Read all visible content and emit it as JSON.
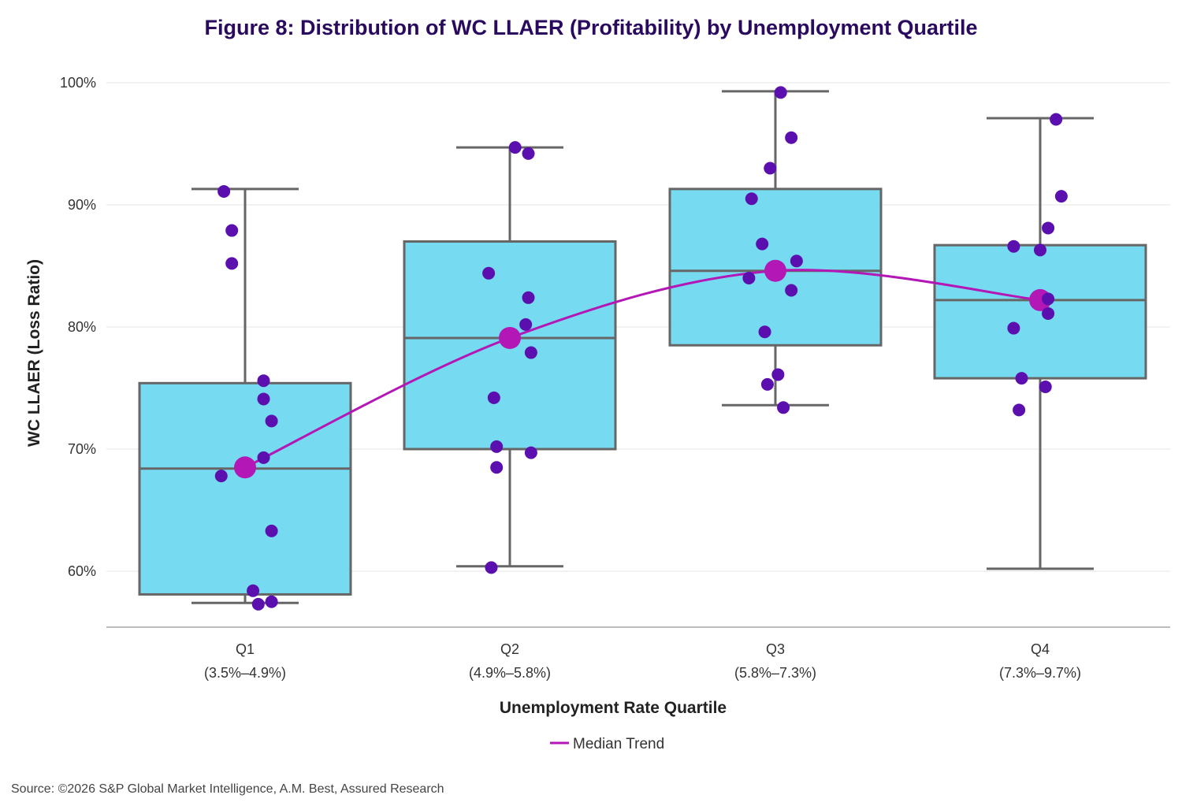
{
  "chart_data": {
    "type": "box",
    "title": "Figure 8: Distribution of WC LLAER (Profitability) by Unemployment Quartile",
    "xlabel": "Unemployment Rate Quartile",
    "ylabel": "WC LLAER (Loss Ratio)",
    "ylim": [
      55.5,
      100.5
    ],
    "yticks": [
      60,
      70,
      80,
      90,
      100
    ],
    "ytick_labels": [
      "60%",
      "70%",
      "80%",
      "90%",
      "100%"
    ],
    "grid": true,
    "legend_position": "bottom-center",
    "categories": [
      {
        "name": "Q1",
        "range": "(3.5%–4.9%)"
      },
      {
        "name": "Q2",
        "range": "(4.9%–5.8%)"
      },
      {
        "name": "Q3",
        "range": "(5.8%–7.3%)"
      },
      {
        "name": "Q4",
        "range": "(7.3%–9.7%)"
      }
    ],
    "boxes": [
      {
        "whisker_low": 57.4,
        "q1": 58.1,
        "median": 68.4,
        "q3": 75.4,
        "whisker_high": 91.3
      },
      {
        "whisker_low": 60.4,
        "q1": 70.0,
        "median": 79.1,
        "q3": 87.0,
        "whisker_high": 94.7
      },
      {
        "whisker_low": 73.6,
        "q1": 78.5,
        "median": 84.6,
        "q3": 91.3,
        "whisker_high": 99.3
      },
      {
        "whisker_low": 60.2,
        "q1": 75.8,
        "median": 82.2,
        "q3": 86.7,
        "whisker_high": 97.1
      }
    ],
    "points": [
      [
        {
          "dx": -0.08,
          "y": 91.1
        },
        {
          "dx": -0.05,
          "y": 87.9
        },
        {
          "dx": -0.05,
          "y": 85.2
        },
        {
          "dx": 0.07,
          "y": 75.6
        },
        {
          "dx": 0.07,
          "y": 74.1
        },
        {
          "dx": 0.1,
          "y": 72.3
        },
        {
          "dx": 0.07,
          "y": 69.3
        },
        {
          "dx": -0.09,
          "y": 67.8
        },
        {
          "dx": 0.1,
          "y": 63.3
        },
        {
          "dx": 0.03,
          "y": 58.4
        },
        {
          "dx": 0.1,
          "y": 57.5
        },
        {
          "dx": 0.05,
          "y": 57.3
        }
      ],
      [
        {
          "dx": 0.02,
          "y": 94.7
        },
        {
          "dx": 0.07,
          "y": 94.2
        },
        {
          "dx": -0.08,
          "y": 84.4
        },
        {
          "dx": 0.07,
          "y": 82.4
        },
        {
          "dx": 0.06,
          "y": 80.2
        },
        {
          "dx": 0.08,
          "y": 77.9
        },
        {
          "dx": -0.06,
          "y": 74.2
        },
        {
          "dx": -0.05,
          "y": 70.2
        },
        {
          "dx": 0.08,
          "y": 69.7
        },
        {
          "dx": -0.05,
          "y": 68.5
        },
        {
          "dx": -0.07,
          "y": 60.3
        }
      ],
      [
        {
          "dx": 0.02,
          "y": 99.2
        },
        {
          "dx": 0.06,
          "y": 95.5
        },
        {
          "dx": -0.02,
          "y": 93.0
        },
        {
          "dx": -0.09,
          "y": 90.5
        },
        {
          "dx": -0.05,
          "y": 86.8
        },
        {
          "dx": 0.08,
          "y": 85.4
        },
        {
          "dx": -0.1,
          "y": 84.0
        },
        {
          "dx": -0.04,
          "y": 79.6
        },
        {
          "dx": 0.06,
          "y": 83.0
        },
        {
          "dx": 0.01,
          "y": 76.1
        },
        {
          "dx": -0.03,
          "y": 75.3
        },
        {
          "dx": 0.03,
          "y": 73.4
        }
      ],
      [
        {
          "dx": 0.06,
          "y": 97.0
        },
        {
          "dx": 0.08,
          "y": 90.7
        },
        {
          "dx": 0.03,
          "y": 88.1
        },
        {
          "dx": -0.1,
          "y": 86.6
        },
        {
          "dx": 0.0,
          "y": 86.3
        },
        {
          "dx": 0.03,
          "y": 82.3
        },
        {
          "dx": 0.03,
          "y": 81.1
        },
        {
          "dx": -0.1,
          "y": 79.9
        },
        {
          "dx": -0.07,
          "y": 75.8
        },
        {
          "dx": 0.02,
          "y": 75.1
        },
        {
          "dx": -0.08,
          "y": 73.2
        }
      ]
    ],
    "median_trend": {
      "name": "Median Trend",
      "values": [
        68.5,
        79.1,
        84.6,
        82.2
      ]
    },
    "colors": {
      "box_fill": "#76dbf0",
      "box_stroke": "#666666",
      "point": "#5b0fae",
      "trend": "#b318b6",
      "grid": "#e6e6e6",
      "axis": "#bbbbbb"
    }
  },
  "source": "Source: ©2026 S&P Global Market Intelligence, A.M. Best, Assured Research"
}
